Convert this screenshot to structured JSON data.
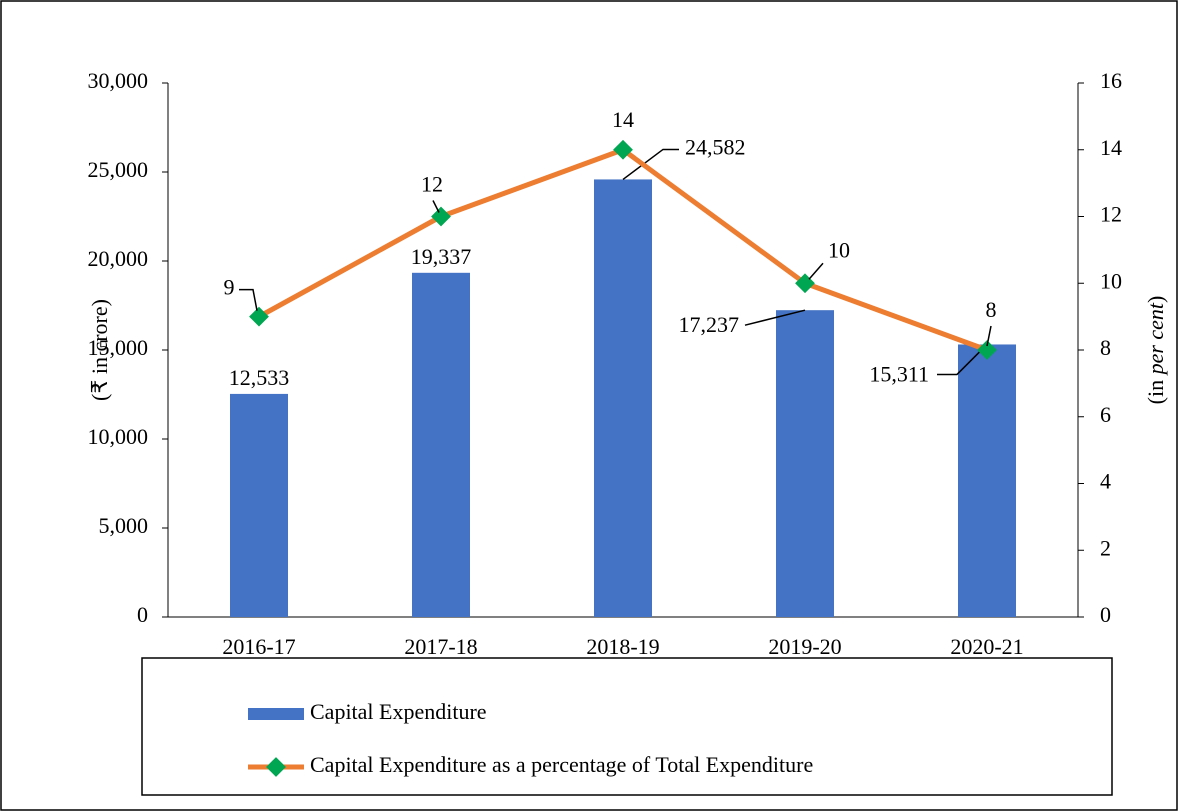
{
  "chart_data": {
    "type": "bar_line",
    "categories": [
      "2016-17",
      "2017-18",
      "2018-19",
      "2019-20",
      "2020-21"
    ],
    "series": [
      {
        "name": "Capital Expenditure",
        "type": "bar",
        "color": "#4472c4",
        "values": [
          12533,
          19337,
          24582,
          17237,
          15311
        ],
        "value_labels": [
          "12,533",
          "19,337",
          "24,582",
          "17,237",
          "15,311"
        ]
      },
      {
        "name": "Capital Expenditure as a percentage of Total Expenditure",
        "type": "line",
        "axis": "y2",
        "color": "#ed7d31",
        "marker_color": "#00a651",
        "values": [
          9,
          12,
          14,
          10,
          8
        ]
      }
    ],
    "y_label": "(₹ in crore)",
    "y2_label": [
      "(in ",
      "per cent",
      ")"
    ],
    "ylim": [
      0,
      30000
    ],
    "yticks": [
      0,
      {
        "value": 5000,
        "label": "5,000"
      },
      {
        "value": 10000,
        "label": "10,000"
      },
      {
        "value": 15000,
        "label": "15,000"
      },
      {
        "value": 20000,
        "label": "20,000"
      },
      {
        "value": 25000,
        "label": "25,000"
      },
      {
        "value": 30000,
        "label": "30,000"
      }
    ],
    "y2lim": [
      0,
      16
    ],
    "y2ticks": [
      0,
      2,
      4,
      6,
      8,
      10,
      12,
      14,
      16
    ],
    "legend": "bottom"
  }
}
